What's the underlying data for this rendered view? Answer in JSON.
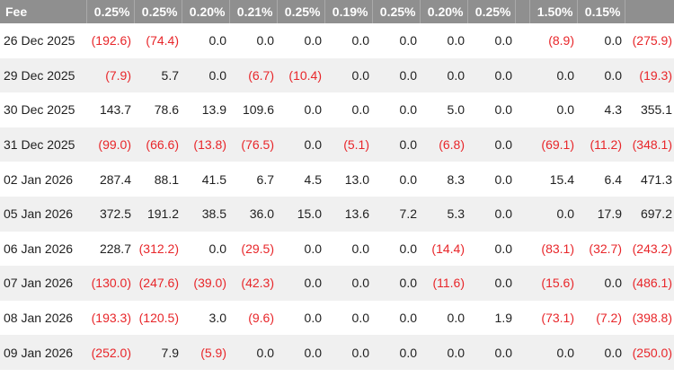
{
  "table": {
    "header": {
      "first": "Fee",
      "fees": [
        "0.25%",
        "0.25%",
        "0.20%",
        "0.21%",
        "0.25%",
        "0.19%",
        "0.25%",
        "0.20%",
        "0.25%"
      ],
      "fee_a": "1.50%",
      "fee_b": "0.15%",
      "last": ""
    },
    "rows": [
      {
        "date": "26 Dec 2025",
        "v": [
          "(192.6)",
          "(74.4)",
          "0.0",
          "0.0",
          "0.0",
          "0.0",
          "0.0",
          "0.0",
          "0.0",
          "(8.9)",
          "0.0",
          "(275.9)"
        ]
      },
      {
        "date": "29 Dec 2025",
        "v": [
          "(7.9)",
          "5.7",
          "0.0",
          "(6.7)",
          "(10.4)",
          "0.0",
          "0.0",
          "0.0",
          "0.0",
          "0.0",
          "0.0",
          "(19.3)"
        ]
      },
      {
        "date": "30 Dec 2025",
        "v": [
          "143.7",
          "78.6",
          "13.9",
          "109.6",
          "0.0",
          "0.0",
          "0.0",
          "5.0",
          "0.0",
          "0.0",
          "4.3",
          "355.1"
        ]
      },
      {
        "date": "31 Dec 2025",
        "v": [
          "(99.0)",
          "(66.6)",
          "(13.8)",
          "(76.5)",
          "0.0",
          "(5.1)",
          "0.0",
          "(6.8)",
          "0.0",
          "(69.1)",
          "(11.2)",
          "(348.1)"
        ]
      },
      {
        "date": "02 Jan 2026",
        "v": [
          "287.4",
          "88.1",
          "41.5",
          "6.7",
          "4.5",
          "13.0",
          "0.0",
          "8.3",
          "0.0",
          "15.4",
          "6.4",
          "471.3"
        ]
      },
      {
        "date": "05 Jan 2026",
        "v": [
          "372.5",
          "191.2",
          "38.5",
          "36.0",
          "15.0",
          "13.6",
          "7.2",
          "5.3",
          "0.0",
          "0.0",
          "17.9",
          "697.2"
        ]
      },
      {
        "date": "06 Jan 2026",
        "v": [
          "228.7",
          "(312.2)",
          "0.0",
          "(29.5)",
          "0.0",
          "0.0",
          "0.0",
          "(14.4)",
          "0.0",
          "(83.1)",
          "(32.7)",
          "(243.2)"
        ]
      },
      {
        "date": "07 Jan 2026",
        "v": [
          "(130.0)",
          "(247.6)",
          "(39.0)",
          "(42.3)",
          "0.0",
          "0.0",
          "0.0",
          "(11.6)",
          "0.0",
          "(15.6)",
          "0.0",
          "(486.1)"
        ]
      },
      {
        "date": "08 Jan 2026",
        "v": [
          "(193.3)",
          "(120.5)",
          "3.0",
          "(9.6)",
          "0.0",
          "0.0",
          "0.0",
          "0.0",
          "1.9",
          "(73.1)",
          "(7.2)",
          "(398.8)"
        ]
      },
      {
        "date": "09 Jan 2026",
        "v": [
          "(252.0)",
          "7.9",
          "(5.9)",
          "0.0",
          "0.0",
          "0.0",
          "0.0",
          "0.0",
          "0.0",
          "0.0",
          "0.0",
          "(250.0)"
        ]
      }
    ]
  }
}
